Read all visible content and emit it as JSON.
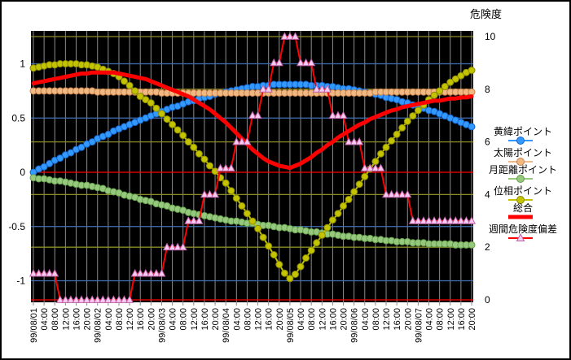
{
  "chart_data": {
    "type": "line",
    "plot_bg": "#000000",
    "gridline_colors": {
      "vertical": "#8C8C8C",
      "left_axis": "#4472B8",
      "right_axis": "#8B8B2A",
      "zero_line": "#FF0000"
    },
    "left_axis": {
      "ticks": [
        "1",
        "0.5",
        "0",
        "-0.5",
        "-1"
      ],
      "tick_values": [
        1,
        0.5,
        0,
        -0.5,
        -1
      ]
    },
    "right_axis": {
      "title": "危険度",
      "ticks": [
        "10",
        "8",
        "6",
        "4",
        "2",
        "0"
      ],
      "tick_values": [
        10,
        8,
        6,
        4,
        2,
        0
      ]
    },
    "x_tick_labels": [
      "99/08/01",
      "04:00",
      "08:00",
      "12:00",
      "16:00",
      "20:00",
      "99/08/02",
      "04:00",
      "08:00",
      "12:00",
      "16:00",
      "20:00",
      "99/08/03",
      "04:00",
      "08:00",
      "12:00",
      "16:00",
      "20:00",
      "99/08/04",
      "04:00",
      "08:00",
      "12:00",
      "16:00",
      "20:00",
      "99/08/05",
      "04:00",
      "08:00",
      "12:00",
      "16:00",
      "20:00",
      "99/08/06",
      "04:00",
      "08:00",
      "12:00",
      "16:00",
      "20:00",
      "99/08/07",
      "04:00",
      "08:00",
      "12:00",
      "16:00",
      "20:00"
    ],
    "points_per_tick": 2,
    "series": [
      {
        "name": "黄緯ポイント",
        "axis": "left",
        "marker": "circle",
        "color": "#3399FF",
        "border": "#1464C8",
        "line_width": 2,
        "values": [
          0.0,
          0.03,
          0.05,
          0.08,
          0.11,
          0.13,
          0.16,
          0.18,
          0.21,
          0.23,
          0.26,
          0.28,
          0.31,
          0.33,
          0.35,
          0.38,
          0.4,
          0.42,
          0.44,
          0.46,
          0.48,
          0.5,
          0.52,
          0.54,
          0.56,
          0.58,
          0.6,
          0.61,
          0.63,
          0.65,
          0.66,
          0.68,
          0.69,
          0.7,
          0.72,
          0.73,
          0.74,
          0.75,
          0.76,
          0.77,
          0.78,
          0.79,
          0.79,
          0.8,
          0.8,
          0.81,
          0.81,
          0.81,
          0.81,
          0.81,
          0.81,
          0.81,
          0.8,
          0.8,
          0.8,
          0.79,
          0.79,
          0.78,
          0.77,
          0.77,
          0.76,
          0.75,
          0.74,
          0.73,
          0.72,
          0.71,
          0.69,
          0.68,
          0.67,
          0.65,
          0.64,
          0.62,
          0.61,
          0.59,
          0.57,
          0.56,
          0.54,
          0.52,
          0.5,
          0.48,
          0.46,
          0.44,
          0.42
        ]
      },
      {
        "name": "太陽ポイント",
        "axis": "left",
        "marker": "circle",
        "color": "#F0B882",
        "border": "#C8824B",
        "line_width": 2,
        "values": [
          0.75,
          0.75,
          0.75,
          0.75,
          0.75,
          0.75,
          0.75,
          0.75,
          0.75,
          0.75,
          0.75,
          0.75,
          0.74,
          0.74,
          0.74,
          0.74,
          0.74,
          0.74,
          0.74,
          0.74,
          0.74,
          0.74,
          0.74,
          0.74,
          0.73,
          0.73,
          0.73,
          0.73,
          0.73,
          0.73,
          0.73,
          0.73,
          0.73,
          0.73,
          0.73,
          0.73,
          0.73,
          0.73,
          0.73,
          0.73,
          0.73,
          0.73,
          0.73,
          0.73,
          0.73,
          0.73,
          0.73,
          0.73,
          0.73,
          0.73,
          0.73,
          0.73,
          0.73,
          0.73,
          0.73,
          0.73,
          0.73,
          0.73,
          0.73,
          0.73,
          0.73,
          0.73,
          0.73,
          0.73,
          0.74,
          0.74,
          0.74,
          0.74,
          0.74,
          0.74,
          0.74,
          0.74,
          0.74,
          0.74,
          0.74,
          0.74,
          0.74,
          0.74,
          0.74,
          0.74,
          0.74,
          0.74,
          0.74
        ]
      },
      {
        "name": "月距離ポイント",
        "axis": "left",
        "marker": "circle",
        "color": "#96C87D",
        "border": "#64A04B",
        "line_width": 2,
        "values": [
          -0.05,
          -0.06,
          -0.06,
          -0.07,
          -0.08,
          -0.08,
          -0.09,
          -0.1,
          -0.11,
          -0.12,
          -0.12,
          -0.13,
          -0.14,
          -0.15,
          -0.17,
          -0.18,
          -0.19,
          -0.21,
          -0.22,
          -0.23,
          -0.25,
          -0.26,
          -0.27,
          -0.29,
          -0.3,
          -0.31,
          -0.33,
          -0.34,
          -0.35,
          -0.37,
          -0.38,
          -0.39,
          -0.4,
          -0.41,
          -0.42,
          -0.43,
          -0.44,
          -0.45,
          -0.45,
          -0.46,
          -0.47,
          -0.47,
          -0.48,
          -0.49,
          -0.49,
          -0.5,
          -0.51,
          -0.51,
          -0.52,
          -0.53,
          -0.53,
          -0.54,
          -0.55,
          -0.55,
          -0.56,
          -0.57,
          -0.57,
          -0.58,
          -0.59,
          -0.59,
          -0.6,
          -0.6,
          -0.61,
          -0.61,
          -0.62,
          -0.62,
          -0.63,
          -0.63,
          -0.64,
          -0.64,
          -0.64,
          -0.65,
          -0.65,
          -0.65,
          -0.66,
          -0.66,
          -0.66,
          -0.66,
          -0.66,
          -0.67,
          -0.67,
          -0.67,
          -0.67
        ]
      },
      {
        "name": "位相ポイント",
        "axis": "left",
        "marker": "circle",
        "color": "#C3C300",
        "border": "#8B8B00",
        "line_width": 2,
        "values": [
          0.96,
          0.97,
          0.98,
          0.99,
          0.99,
          1.0,
          1.0,
          1.0,
          1.0,
          0.99,
          0.99,
          0.98,
          0.97,
          0.95,
          0.93,
          0.91,
          0.88,
          0.84,
          0.8,
          0.75,
          0.7,
          0.67,
          0.64,
          0.59,
          0.54,
          0.49,
          0.44,
          0.39,
          0.34,
          0.28,
          0.23,
          0.17,
          0.12,
          0.06,
          0.01,
          -0.05,
          -0.1,
          -0.17,
          -0.24,
          -0.31,
          -0.38,
          -0.45,
          -0.52,
          -0.6,
          -0.68,
          -0.76,
          -0.85,
          -0.93,
          -0.98,
          -0.94,
          -0.87,
          -0.79,
          -0.72,
          -0.65,
          -0.58,
          -0.51,
          -0.44,
          -0.38,
          -0.31,
          -0.25,
          -0.18,
          -0.11,
          -0.04,
          0.03,
          0.1,
          0.17,
          0.23,
          0.29,
          0.35,
          0.41,
          0.47,
          0.52,
          0.57,
          0.62,
          0.67,
          0.71,
          0.75,
          0.79,
          0.83,
          0.86,
          0.89,
          0.92,
          0.94
        ]
      },
      {
        "name": "総合",
        "axis": "left",
        "marker": "none",
        "color": "#FF0000",
        "border": "#FF0000",
        "line_width": 5,
        "values": [
          0.82,
          0.83,
          0.84,
          0.85,
          0.86,
          0.87,
          0.88,
          0.89,
          0.9,
          0.91,
          0.91,
          0.92,
          0.92,
          0.92,
          0.92,
          0.92,
          0.91,
          0.9,
          0.89,
          0.88,
          0.87,
          0.86,
          0.84,
          0.82,
          0.8,
          0.78,
          0.76,
          0.74,
          0.72,
          0.7,
          0.67,
          0.64,
          0.61,
          0.58,
          0.54,
          0.5,
          0.46,
          0.41,
          0.36,
          0.31,
          0.26,
          0.21,
          0.17,
          0.13,
          0.1,
          0.08,
          0.06,
          0.05,
          0.04,
          0.06,
          0.08,
          0.11,
          0.14,
          0.18,
          0.21,
          0.25,
          0.28,
          0.32,
          0.35,
          0.38,
          0.41,
          0.44,
          0.46,
          0.49,
          0.51,
          0.53,
          0.55,
          0.57,
          0.58,
          0.6,
          0.61,
          0.62,
          0.63,
          0.64,
          0.65,
          0.66,
          0.66,
          0.67,
          0.68,
          0.68,
          0.69,
          0.69,
          0.7
        ]
      },
      {
        "name": "週間危険度偏差",
        "axis": "right",
        "marker": "triangle",
        "color": "#FF0000",
        "border": "#C060A8",
        "marker_fill": "#F8CCF0",
        "line_width": 2,
        "values": [
          1,
          1,
          1,
          1,
          1,
          0,
          0,
          0,
          0,
          0,
          0,
          0,
          0,
          0,
          0,
          0,
          0,
          0,
          0,
          1,
          1,
          1,
          1,
          1,
          1,
          2,
          2,
          2,
          2,
          3,
          3,
          3,
          4,
          4,
          4,
          5,
          5,
          5,
          6,
          6,
          6,
          7,
          7,
          8,
          8,
          9,
          9,
          10,
          10,
          10,
          9,
          9,
          9,
          8,
          8,
          8,
          7,
          7,
          7,
          6,
          6,
          6,
          5,
          5,
          5,
          5,
          4,
          4,
          4,
          4,
          4,
          3,
          3,
          3,
          3,
          3,
          3,
          3,
          3,
          3,
          3,
          3,
          3
        ]
      }
    ],
    "legend": {
      "items": [
        "黄緯ポイント",
        "太陽ポイント",
        "月距離ポイント",
        "位相ポイント",
        "総合",
        "週間危険度偏差"
      ]
    }
  }
}
